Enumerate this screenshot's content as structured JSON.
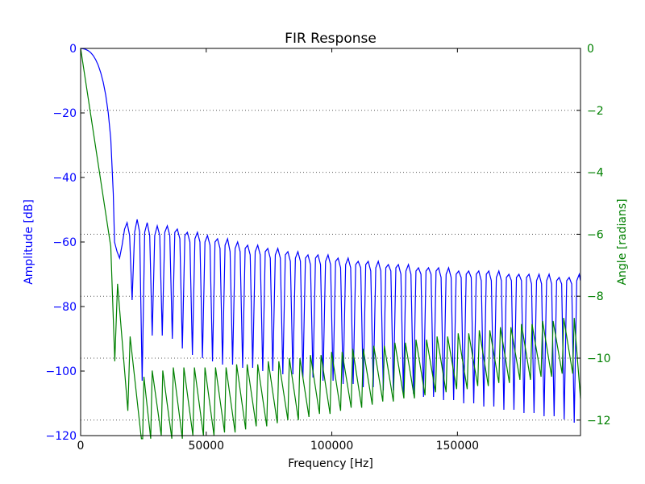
{
  "chart_data": {
    "type": "line",
    "title": "FIR Response",
    "xlabel": "Frequency [Hz]",
    "ylabel_left": "Amplitude [dB]",
    "ylabel_right": "Angle [radians]",
    "xlim": [
      0,
      199000
    ],
    "ylim_left": [
      -120,
      0
    ],
    "ylim_right": [
      -12.5,
      0
    ],
    "x_ticks": [
      {
        "value": 0,
        "label": "0"
      },
      {
        "value": 50000,
        "label": "50000"
      },
      {
        "value": 100000,
        "label": "100000"
      },
      {
        "value": 150000,
        "label": "150000"
      }
    ],
    "y_ticks_left": [
      {
        "value": 0,
        "label": "0"
      },
      {
        "value": -20,
        "label": "−20"
      },
      {
        "value": -40,
        "label": "−40"
      },
      {
        "value": -60,
        "label": "−60"
      },
      {
        "value": -80,
        "label": "−80"
      },
      {
        "value": -100,
        "label": "−100"
      },
      {
        "value": -120,
        "label": "−120"
      }
    ],
    "y_ticks_right": [
      {
        "value": 0,
        "label": "0"
      },
      {
        "value": -2,
        "label": "−2"
      },
      {
        "value": -4,
        "label": "−4"
      },
      {
        "value": -6,
        "label": "−6"
      },
      {
        "value": -8,
        "label": "−8"
      },
      {
        "value": -10,
        "label": "−10"
      },
      {
        "value": -12,
        "label": "−12"
      }
    ],
    "grid": "horizontal dotted at right-axis ticks",
    "colors": {
      "amplitude": "#0000ff",
      "angle": "#008000",
      "axes": "#000000",
      "grid": "#555555"
    },
    "series": [
      {
        "axis": "left",
        "color": "#0000ff",
        "points": [
          [
            0,
            0
          ],
          [
            1000,
            -0.1
          ],
          [
            2000,
            -0.3
          ],
          [
            3000,
            -0.7
          ],
          [
            4000,
            -1.3
          ],
          [
            5000,
            -2.2
          ],
          [
            6000,
            -3.5
          ],
          [
            7000,
            -5.2
          ],
          [
            8000,
            -7.5
          ],
          [
            9000,
            -10.5
          ],
          [
            10000,
            -14.5
          ],
          [
            11000,
            -20
          ],
          [
            12000,
            -28
          ],
          [
            13000,
            -45
          ],
          [
            13500,
            -60
          ],
          [
            14500,
            -63
          ],
          [
            15500,
            -65
          ],
          [
            16500,
            -61
          ],
          [
            17500,
            -56
          ],
          [
            18500,
            -54
          ],
          [
            19500,
            -58
          ],
          [
            20500,
            -78
          ],
          [
            21500,
            -57
          ],
          [
            22500,
            -53
          ],
          [
            23500,
            -57
          ],
          [
            24500,
            -103
          ],
          [
            25500,
            -57
          ],
          [
            26500,
            -54
          ],
          [
            27500,
            -58
          ],
          [
            28500,
            -89
          ],
          [
            29500,
            -58
          ],
          [
            30500,
            -55
          ],
          [
            31500,
            -58
          ],
          [
            32500,
            -89
          ],
          [
            33500,
            -57
          ],
          [
            34500,
            -55
          ],
          [
            35500,
            -58
          ],
          [
            36500,
            -90
          ],
          [
            37500,
            -57
          ],
          [
            38500,
            -56
          ],
          [
            39500,
            -59
          ],
          [
            40500,
            -93
          ],
          [
            41500,
            -58
          ],
          [
            42500,
            -57
          ],
          [
            43500,
            -60
          ],
          [
            44500,
            -95
          ],
          [
            45500,
            -59
          ],
          [
            46500,
            -57
          ],
          [
            47500,
            -60
          ],
          [
            48500,
            -96
          ],
          [
            49500,
            -60
          ],
          [
            50500,
            -58
          ],
          [
            51500,
            -61
          ],
          [
            52500,
            -97
          ],
          [
            53500,
            -60
          ],
          [
            54500,
            -59
          ],
          [
            55500,
            -62
          ],
          [
            56500,
            -98
          ],
          [
            57500,
            -61
          ],
          [
            58500,
            -59
          ],
          [
            59500,
            -63
          ],
          [
            60500,
            -98
          ],
          [
            61500,
            -62
          ],
          [
            62500,
            -60
          ],
          [
            63500,
            -63
          ],
          [
            64500,
            -99
          ],
          [
            65500,
            -62
          ],
          [
            66500,
            -61
          ],
          [
            67500,
            -64
          ],
          [
            68500,
            -99
          ],
          [
            69500,
            -63
          ],
          [
            70500,
            -61
          ],
          [
            71500,
            -64
          ],
          [
            72500,
            -100
          ],
          [
            73500,
            -63
          ],
          [
            74500,
            -62
          ],
          [
            75500,
            -65
          ],
          [
            76500,
            -100
          ],
          [
            77500,
            -64
          ],
          [
            78500,
            -62
          ],
          [
            79500,
            -65
          ],
          [
            80500,
            -101
          ],
          [
            81500,
            -64
          ],
          [
            82500,
            -63
          ],
          [
            83500,
            -66
          ],
          [
            84500,
            -101
          ],
          [
            85500,
            -65
          ],
          [
            86500,
            -63
          ],
          [
            87500,
            -66
          ],
          [
            88500,
            -102
          ],
          [
            89500,
            -65
          ],
          [
            90500,
            -64
          ],
          [
            91500,
            -67
          ],
          [
            92500,
            -102
          ],
          [
            93500,
            -65
          ],
          [
            94500,
            -64
          ],
          [
            95500,
            -67
          ],
          [
            96500,
            -103
          ],
          [
            97500,
            -66
          ],
          [
            98500,
            -64
          ],
          [
            99500,
            -67
          ],
          [
            100500,
            -103
          ],
          [
            101500,
            -66
          ],
          [
            102500,
            -65
          ],
          [
            103500,
            -68
          ],
          [
            104500,
            -104
          ],
          [
            105500,
            -67
          ],
          [
            106500,
            -65
          ],
          [
            107500,
            -68
          ],
          [
            108500,
            -104
          ],
          [
            109500,
            -67
          ],
          [
            110500,
            -66
          ],
          [
            111500,
            -68
          ],
          [
            112500,
            -105
          ],
          [
            113500,
            -67
          ],
          [
            114500,
            -66
          ],
          [
            115500,
            -69
          ],
          [
            116500,
            -105
          ],
          [
            117500,
            -68
          ],
          [
            118500,
            -66
          ],
          [
            119500,
            -69
          ],
          [
            120500,
            -106
          ],
          [
            121500,
            -68
          ],
          [
            122500,
            -67
          ],
          [
            123500,
            -69
          ],
          [
            124500,
            -106
          ],
          [
            125500,
            -68
          ],
          [
            126500,
            -67
          ],
          [
            127500,
            -70
          ],
          [
            128500,
            -107
          ],
          [
            129500,
            -69
          ],
          [
            130500,
            -67
          ],
          [
            131500,
            -70
          ],
          [
            132500,
            -107
          ],
          [
            133500,
            -69
          ],
          [
            134500,
            -68
          ],
          [
            135500,
            -70
          ],
          [
            136500,
            -108
          ],
          [
            137500,
            -69
          ],
          [
            138500,
            -68
          ],
          [
            139500,
            -70
          ],
          [
            140500,
            -108
          ],
          [
            141500,
            -69
          ],
          [
            142500,
            -68
          ],
          [
            143500,
            -71
          ],
          [
            144500,
            -109
          ],
          [
            145500,
            -70
          ],
          [
            146500,
            -68
          ],
          [
            147500,
            -71
          ],
          [
            148500,
            -109
          ],
          [
            149500,
            -70
          ],
          [
            150500,
            -69
          ],
          [
            151500,
            -71
          ],
          [
            152500,
            -110
          ],
          [
            153500,
            -70
          ],
          [
            154500,
            -69
          ],
          [
            155500,
            -71
          ],
          [
            156500,
            -110
          ],
          [
            157500,
            -70
          ],
          [
            158500,
            -69
          ],
          [
            159500,
            -72
          ],
          [
            160500,
            -111
          ],
          [
            161500,
            -70
          ],
          [
            162500,
            -69
          ],
          [
            163500,
            -72
          ],
          [
            164500,
            -111
          ],
          [
            165500,
            -71
          ],
          [
            166500,
            -69
          ],
          [
            167500,
            -72
          ],
          [
            168500,
            -112
          ],
          [
            169500,
            -71
          ],
          [
            170500,
            -70
          ],
          [
            171500,
            -72
          ],
          [
            172500,
            -112
          ],
          [
            173500,
            -71
          ],
          [
            174500,
            -70
          ],
          [
            175500,
            -72
          ],
          [
            176500,
            -113
          ],
          [
            177500,
            -71
          ],
          [
            178500,
            -70
          ],
          [
            179500,
            -73
          ],
          [
            180500,
            -113
          ],
          [
            181500,
            -72
          ],
          [
            182500,
            -70
          ],
          [
            183500,
            -73
          ],
          [
            184500,
            -114
          ],
          [
            185500,
            -72
          ],
          [
            186500,
            -70
          ],
          [
            187500,
            -73
          ],
          [
            188500,
            -114
          ],
          [
            189500,
            -72
          ],
          [
            190500,
            -71
          ],
          [
            191500,
            -73
          ],
          [
            192500,
            -115
          ],
          [
            193500,
            -72
          ],
          [
            194500,
            -71
          ],
          [
            195500,
            -73
          ],
          [
            196500,
            -116
          ],
          [
            197500,
            -72
          ],
          [
            198500,
            -70
          ],
          [
            199000,
            -72
          ]
        ]
      },
      {
        "axis": "right",
        "color": "#008000",
        "points": [
          [
            0,
            0
          ],
          [
            6000,
            -3.2
          ],
          [
            12000,
            -6.4
          ],
          [
            13600,
            -10.1
          ],
          [
            14700,
            -7.6
          ],
          [
            18800,
            -11.7
          ],
          [
            19700,
            -9.3
          ],
          [
            23900,
            -12.4
          ],
          [
            24200,
            -12.6
          ],
          [
            24700,
            -12.6
          ],
          [
            25200,
            -10.6
          ],
          [
            27900,
            -12.6
          ],
          [
            28500,
            -10.4
          ],
          [
            32100,
            -12.5
          ],
          [
            32700,
            -10.4
          ],
          [
            36300,
            -12.6
          ],
          [
            36900,
            -10.3
          ],
          [
            40500,
            -12.6
          ],
          [
            41100,
            -10.3
          ],
          [
            44700,
            -12.5
          ],
          [
            45300,
            -10.3
          ],
          [
            48900,
            -12.5
          ],
          [
            49500,
            -10.3
          ],
          [
            53100,
            -12.5
          ],
          [
            53700,
            -10.3
          ],
          [
            57300,
            -12.4
          ],
          [
            57900,
            -10.3
          ],
          [
            61500,
            -12.4
          ],
          [
            62100,
            -10.2
          ],
          [
            65700,
            -12.3
          ],
          [
            66300,
            -10.2
          ],
          [
            69900,
            -12.2
          ],
          [
            70500,
            -10.2
          ],
          [
            74100,
            -12.2
          ],
          [
            74700,
            -10.1
          ],
          [
            78300,
            -12.1
          ],
          [
            78900,
            -10.1
          ],
          [
            82500,
            -12.0
          ],
          [
            83100,
            -10.0
          ],
          [
            86700,
            -12.0
          ],
          [
            87300,
            -10.0
          ],
          [
            90900,
            -11.9
          ],
          [
            91500,
            -9.9
          ],
          [
            95100,
            -11.8
          ],
          [
            95700,
            -9.9
          ],
          [
            99300,
            -11.8
          ],
          [
            99900,
            -9.8
          ],
          [
            103500,
            -11.7
          ],
          [
            104100,
            -9.8
          ],
          [
            107700,
            -11.6
          ],
          [
            108300,
            -9.7
          ],
          [
            111900,
            -11.6
          ],
          [
            112500,
            -9.7
          ],
          [
            116100,
            -11.5
          ],
          [
            116700,
            -9.6
          ],
          [
            120300,
            -11.4
          ],
          [
            120900,
            -9.6
          ],
          [
            124500,
            -11.4
          ],
          [
            125100,
            -9.5
          ],
          [
            128700,
            -11.3
          ],
          [
            129300,
            -9.5
          ],
          [
            132900,
            -11.3
          ],
          [
            133500,
            -9.4
          ],
          [
            137100,
            -11.2
          ],
          [
            137700,
            -9.4
          ],
          [
            141300,
            -11.1
          ],
          [
            141900,
            -9.3
          ],
          [
            145500,
            -11.1
          ],
          [
            146100,
            -9.3
          ],
          [
            149700,
            -11.0
          ],
          [
            150300,
            -9.2
          ],
          [
            153900,
            -11.0
          ],
          [
            154500,
            -9.2
          ],
          [
            158100,
            -10.9
          ],
          [
            158700,
            -9.1
          ],
          [
            162300,
            -10.9
          ],
          [
            162900,
            -9.1
          ],
          [
            166500,
            -10.8
          ],
          [
            167100,
            -9.0
          ],
          [
            170700,
            -10.8
          ],
          [
            171300,
            -9.0
          ],
          [
            174900,
            -10.7
          ],
          [
            175500,
            -8.9
          ],
          [
            179100,
            -10.7
          ],
          [
            179700,
            -8.9
          ],
          [
            183300,
            -10.6
          ],
          [
            183900,
            -8.8
          ],
          [
            187500,
            -10.6
          ],
          [
            188100,
            -8.8
          ],
          [
            191700,
            -10.5
          ],
          [
            192300,
            -8.7
          ],
          [
            195900,
            -10.5
          ],
          [
            196500,
            -8.7
          ],
          [
            199000,
            -11.3
          ]
        ]
      }
    ]
  }
}
